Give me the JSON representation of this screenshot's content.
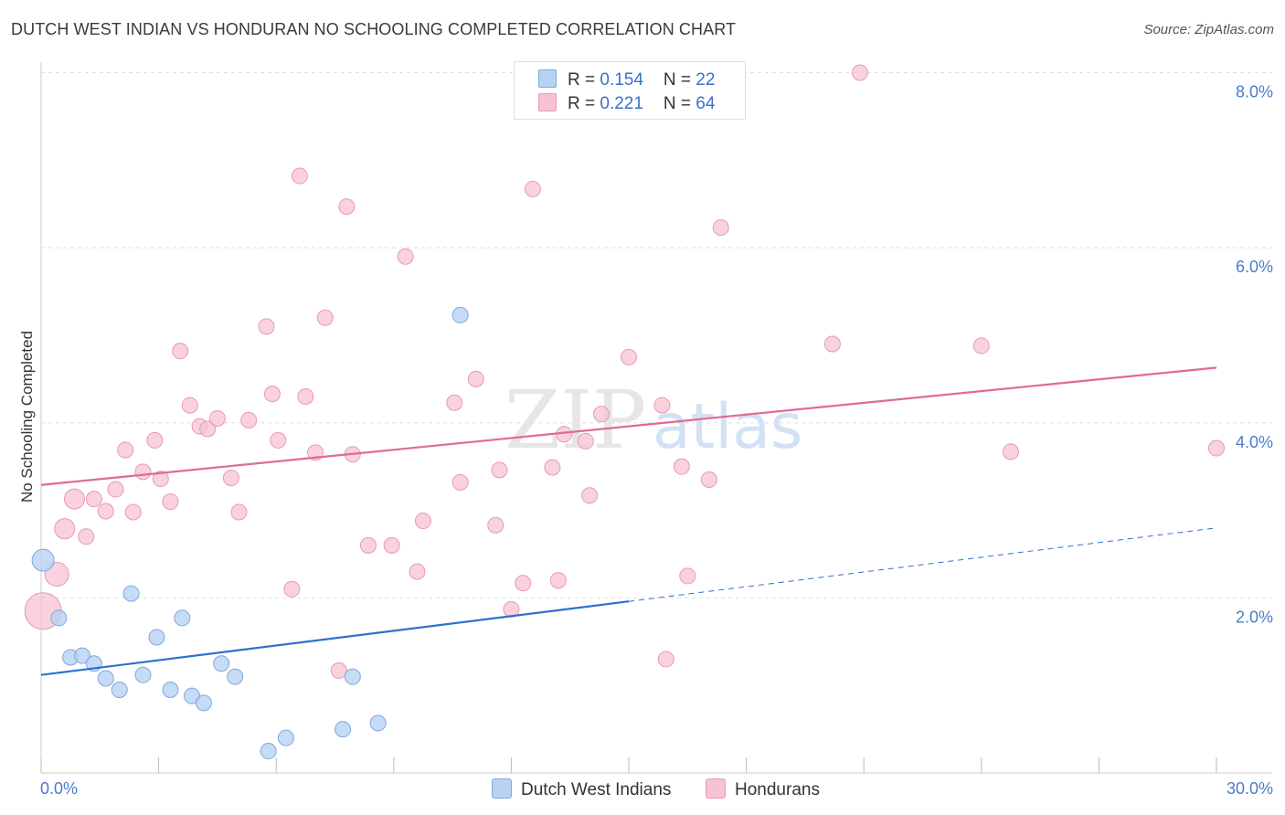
{
  "title": "DUTCH WEST INDIAN VS HONDURAN NO SCHOOLING COMPLETED CORRELATION CHART",
  "source": "Source: ZipAtlas.com",
  "watermark": {
    "zip": "ZIP",
    "atlas": "atlas"
  },
  "colors": {
    "blue_fill": "#b8d2f2",
    "blue_stroke": "#7fa8de",
    "blue_line": "#2f6fd1",
    "pink_fill": "#f7c3d2",
    "pink_stroke": "#e79ab3",
    "pink_line": "#e06a93",
    "axis_text": "#4a7cc9",
    "grid": "#dddddd"
  },
  "legend": {
    "rows": [
      {
        "r_label": "R = ",
        "r_value": "0.154",
        "n_label": "N = ",
        "n_value": "22",
        "color": "#b8d2f2"
      },
      {
        "r_label": "R = ",
        "r_value": "0.221",
        "n_label": "N = ",
        "n_value": "64",
        "color": "#f7c3d2"
      }
    ]
  },
  "bottom_legend": [
    {
      "label": "Dutch West Indians",
      "color": "#b8d2f2"
    },
    {
      "label": "Hondurans",
      "color": "#f7c3d2"
    }
  ],
  "chart_data": {
    "type": "scatter",
    "title": "DUTCH WEST INDIAN VS HONDURAN NO SCHOOLING COMPLETED CORRELATION CHART",
    "xlabel": "",
    "ylabel": "No Schooling Completed",
    "xlim": [
      0,
      30
    ],
    "ylim": [
      0,
      8.4
    ],
    "x_tick_labels": [
      "0.0%",
      "30.0%"
    ],
    "y_ticks": [
      2,
      4,
      6,
      8
    ],
    "y_tick_labels": [
      "2.0%",
      "4.0%",
      "6.0%",
      "8.0%"
    ],
    "grid": true,
    "series": [
      {
        "name": "Dutch West Indians",
        "r": 0.154,
        "n": 22,
        "points": [
          [
            0.05,
            2.43
          ],
          [
            0.45,
            1.77
          ],
          [
            0.75,
            1.32
          ],
          [
            1.05,
            1.34
          ],
          [
            1.35,
            1.25
          ],
          [
            1.65,
            1.08
          ],
          [
            2.0,
            0.95
          ],
          [
            2.3,
            2.05
          ],
          [
            2.6,
            1.12
          ],
          [
            2.95,
            1.55
          ],
          [
            3.3,
            0.95
          ],
          [
            3.6,
            1.77
          ],
          [
            3.85,
            0.88
          ],
          [
            4.15,
            0.8
          ],
          [
            4.6,
            1.25
          ],
          [
            4.95,
            1.1
          ],
          [
            5.8,
            0.25
          ],
          [
            6.25,
            0.4
          ],
          [
            7.7,
            0.5
          ],
          [
            7.95,
            1.1
          ],
          [
            8.6,
            0.57
          ],
          [
            10.7,
            5.23
          ]
        ],
        "trend": {
          "x": [
            0,
            15
          ],
          "y": [
            1.12,
            1.96
          ]
        },
        "trend_dashed": {
          "x": [
            15,
            30
          ],
          "y": [
            1.96,
            2.8
          ]
        }
      },
      {
        "name": "Hondurans",
        "r": 0.221,
        "n": 64,
        "points": [
          [
            0.05,
            1.85
          ],
          [
            0.4,
            2.27
          ],
          [
            0.6,
            2.79
          ],
          [
            0.85,
            3.13
          ],
          [
            1.15,
            2.7
          ],
          [
            1.35,
            3.13
          ],
          [
            1.65,
            2.99
          ],
          [
            1.9,
            3.24
          ],
          [
            2.15,
            3.69
          ],
          [
            2.35,
            2.98
          ],
          [
            2.6,
            3.44
          ],
          [
            2.9,
            3.8
          ],
          [
            3.05,
            3.36
          ],
          [
            3.3,
            3.1
          ],
          [
            3.55,
            4.82
          ],
          [
            3.8,
            4.2
          ],
          [
            4.05,
            3.96
          ],
          [
            4.25,
            3.93
          ],
          [
            4.5,
            4.05
          ],
          [
            4.85,
            3.37
          ],
          [
            5.05,
            2.98
          ],
          [
            5.3,
            4.03
          ],
          [
            5.75,
            5.1
          ],
          [
            5.9,
            4.33
          ],
          [
            6.05,
            3.8
          ],
          [
            6.4,
            2.1
          ],
          [
            6.6,
            6.82
          ],
          [
            6.75,
            4.3
          ],
          [
            7.0,
            3.66
          ],
          [
            7.25,
            5.2
          ],
          [
            7.6,
            1.17
          ],
          [
            7.8,
            6.47
          ],
          [
            7.95,
            3.64
          ],
          [
            8.35,
            2.6
          ],
          [
            8.95,
            2.6
          ],
          [
            9.3,
            5.9
          ],
          [
            9.6,
            2.3
          ],
          [
            9.75,
            2.88
          ],
          [
            10.55,
            4.23
          ],
          [
            10.7,
            3.32
          ],
          [
            11.1,
            4.5
          ],
          [
            11.6,
            2.83
          ],
          [
            11.7,
            3.46
          ],
          [
            12.0,
            1.87
          ],
          [
            12.3,
            2.17
          ],
          [
            12.55,
            6.67
          ],
          [
            13.05,
            3.49
          ],
          [
            13.2,
            2.2
          ],
          [
            13.35,
            3.87
          ],
          [
            13.9,
            3.79
          ],
          [
            14.0,
            3.17
          ],
          [
            14.3,
            4.1
          ],
          [
            15.0,
            4.75
          ],
          [
            15.85,
            4.2
          ],
          [
            15.95,
            1.3
          ],
          [
            16.35,
            3.5
          ],
          [
            16.5,
            2.25
          ],
          [
            17.05,
            3.35
          ],
          [
            17.35,
            6.23
          ],
          [
            20.2,
            4.9
          ],
          [
            20.9,
            8.0
          ],
          [
            24.0,
            4.88
          ],
          [
            24.75,
            3.67
          ],
          [
            30.0,
            3.71
          ]
        ],
        "trend": {
          "x": [
            0,
            30
          ],
          "y": [
            3.29,
            4.63
          ]
        }
      }
    ]
  }
}
